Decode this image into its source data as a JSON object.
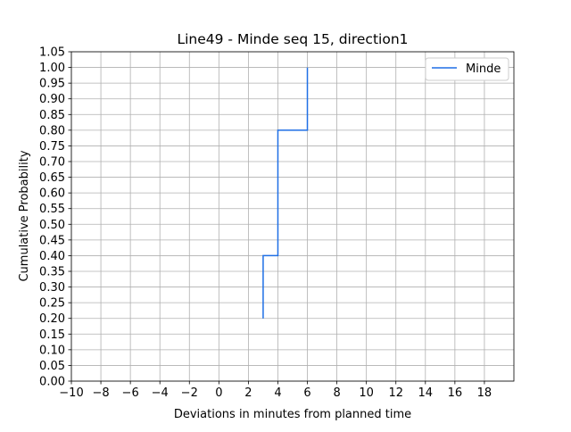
{
  "chart_data": {
    "type": "line",
    "title": "Line49 - Minde seq 15, direction1",
    "xlabel": "Deviations in minutes from planned time",
    "ylabel": "Cumulative Probability",
    "xlim": [
      -10,
      20
    ],
    "ylim": [
      0,
      1.05
    ],
    "grid": true,
    "legend_position": "top-right",
    "x_ticks": [
      "−10",
      "−8",
      "−6",
      "−4",
      "−2",
      "0",
      "2",
      "4",
      "6",
      "8",
      "10",
      "12",
      "14",
      "16",
      "18"
    ],
    "y_ticks": [
      "0.00",
      "0.05",
      "0.10",
      "0.15",
      "0.20",
      "0.25",
      "0.30",
      "0.35",
      "0.40",
      "0.45",
      "0.50",
      "0.55",
      "0.60",
      "0.65",
      "0.70",
      "0.75",
      "0.80",
      "0.85",
      "0.90",
      "0.95",
      "1.00",
      "1.05"
    ],
    "series": [
      {
        "name": "Minde",
        "color": "#1f6fe5",
        "drawstyle": "steps-post",
        "x": [
          3,
          3,
          4,
          4,
          6,
          6
        ],
        "y": [
          0.2,
          0.4,
          0.4,
          0.8,
          0.8,
          1.0
        ]
      }
    ]
  }
}
